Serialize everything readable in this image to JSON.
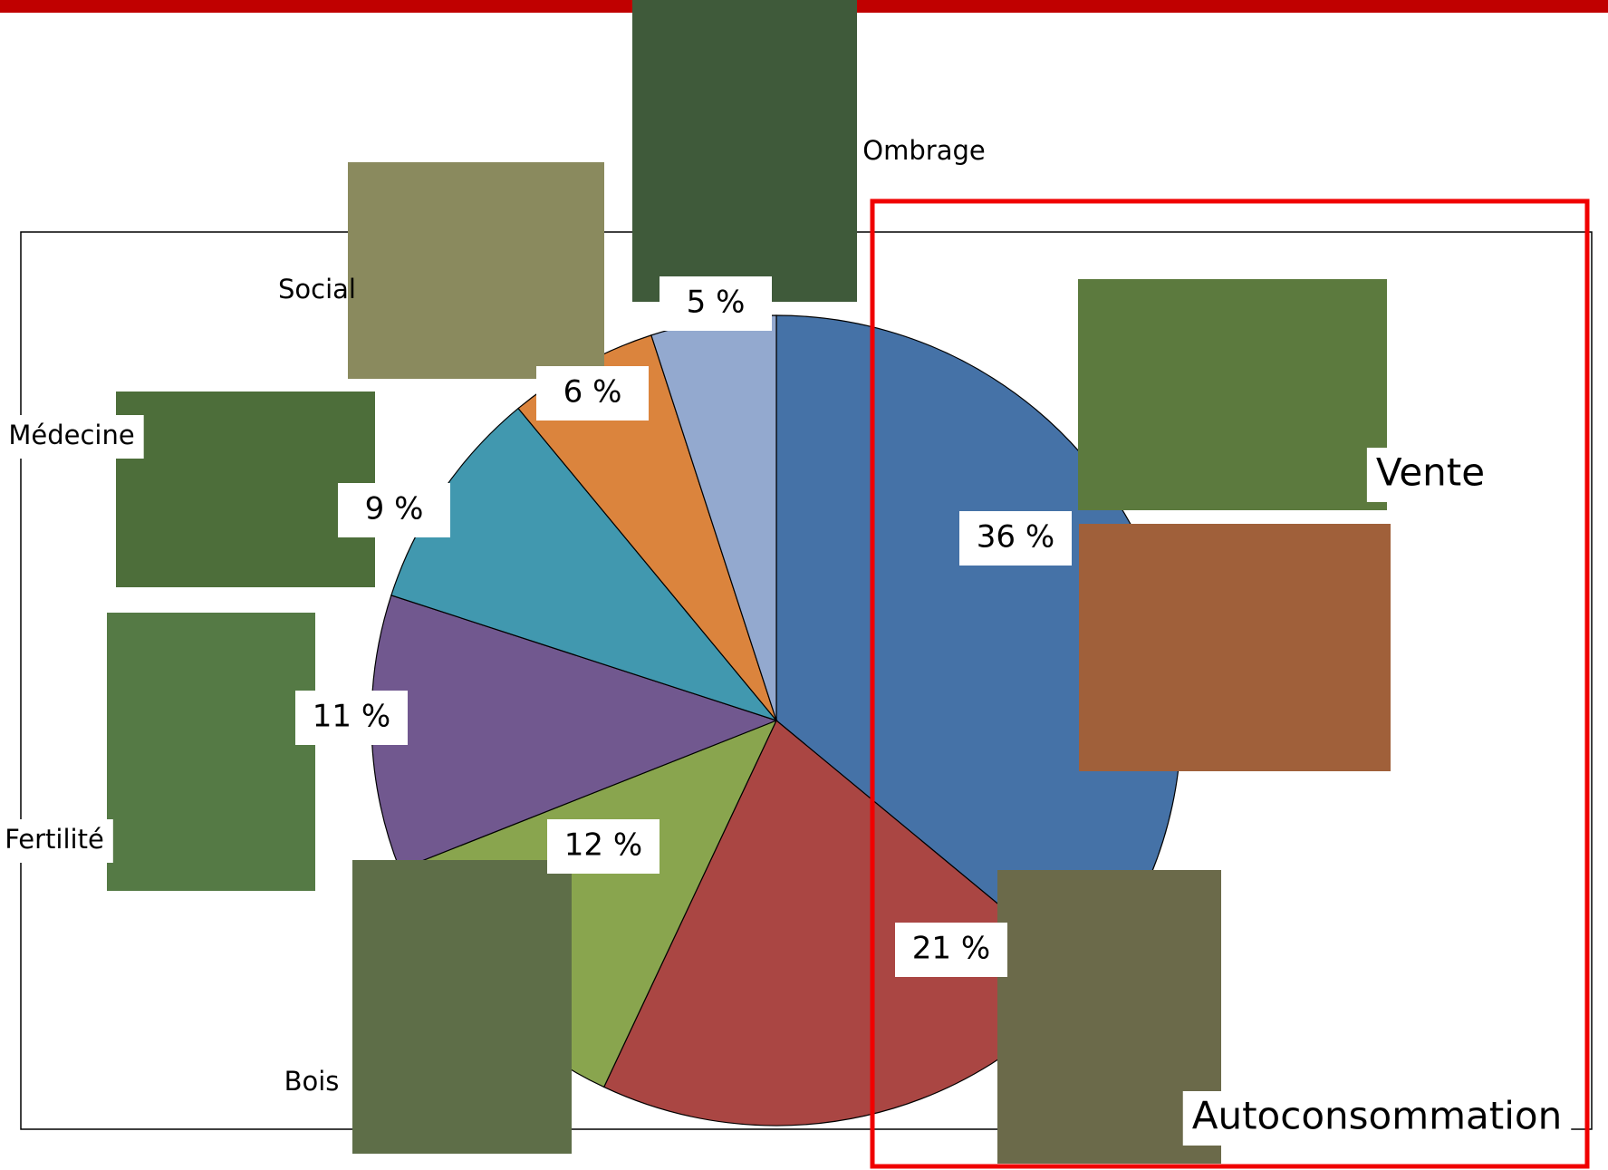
{
  "chart_data": {
    "type": "pie",
    "categories": [
      "Vente",
      "Autoconsommation",
      "Bois",
      "Fertilité",
      "Médecine",
      "Social",
      "Ombrage"
    ],
    "values": [
      36,
      21,
      12,
      11,
      9,
      6,
      5
    ],
    "value_labels": [
      "36 %",
      "21 %",
      "12 %",
      "11 %",
      "9 %",
      "6 %",
      "5 %"
    ],
    "colors": [
      "#4572a7",
      "#aa4643",
      "#89a54e",
      "#71588f",
      "#4198af",
      "#db843d",
      "#93a9cf"
    ]
  }
}
